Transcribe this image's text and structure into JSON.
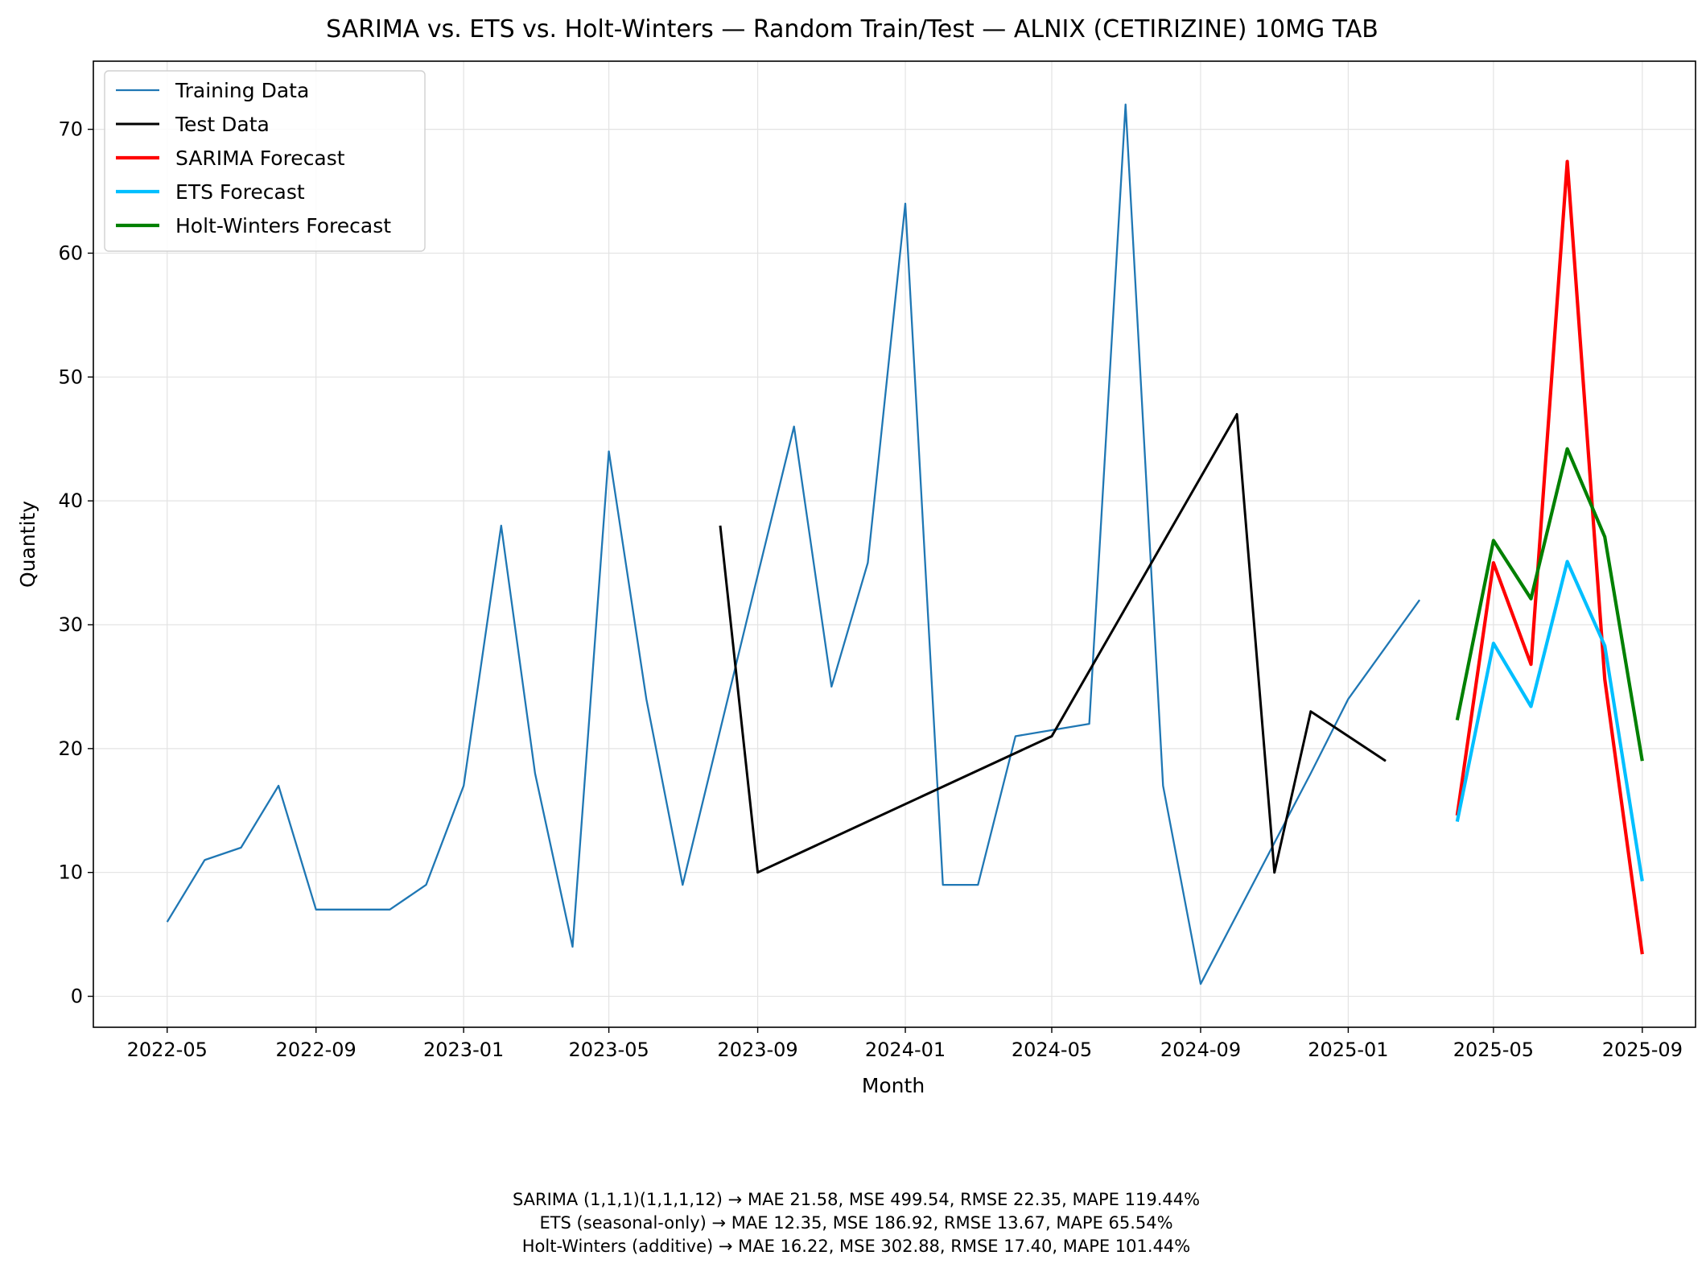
{
  "chart_data": {
    "type": "line",
    "title": "SARIMA vs. ETS vs. Holt-Winters — Random Train/Test — ALNIX (CETIRIZINE) 10MG TAB",
    "xlabel": "Month",
    "ylabel": "Quantity",
    "x_ticks": [
      "2022-05",
      "2022-09",
      "2023-01",
      "2023-05",
      "2023-09",
      "2024-01",
      "2024-05",
      "2024-09",
      "2025-01",
      "2025-05",
      "2025-09"
    ],
    "y_ticks": [
      0,
      10,
      20,
      30,
      40,
      50,
      60,
      70
    ],
    "xlim": [
      "2022-03-01",
      "2025-10-15"
    ],
    "ylim": [
      -2.5,
      75.5
    ],
    "grid": true,
    "legend_position": "top-left",
    "series": [
      {
        "name": "Training Data",
        "color": "#1f77b4",
        "points": [
          [
            "2022-05",
            6
          ],
          [
            "2022-06",
            11
          ],
          [
            "2022-07",
            12
          ],
          [
            "2022-08",
            17
          ],
          [
            "2022-09",
            7
          ],
          [
            "2022-10",
            7
          ],
          [
            "2022-11",
            7
          ],
          [
            "2022-12",
            9
          ],
          [
            "2023-01",
            17
          ],
          [
            "2023-02",
            38
          ],
          [
            "2023-03",
            18
          ],
          [
            "2023-04",
            4
          ],
          [
            "2023-05",
            44
          ],
          [
            "2023-06",
            24
          ],
          [
            "2023-07",
            9
          ],
          [
            "2023-09",
            34
          ],
          [
            "2023-10",
            46
          ],
          [
            "2023-11",
            25
          ],
          [
            "2023-12",
            35
          ],
          [
            "2024-01",
            64
          ],
          [
            "2024-02",
            9
          ],
          [
            "2024-03",
            9
          ],
          [
            "2024-04",
            21
          ],
          [
            "2024-06",
            22
          ],
          [
            "2024-07",
            72
          ],
          [
            "2024-08",
            17
          ],
          [
            "2024-09",
            1
          ],
          [
            "2024-12",
            18
          ],
          [
            "2025-01",
            24
          ],
          [
            "2025-03",
            32
          ]
        ]
      },
      {
        "name": "Test Data",
        "color": "#000000",
        "points": [
          [
            "2023-08",
            38
          ],
          [
            "2023-09",
            10
          ],
          [
            "2024-05",
            21
          ],
          [
            "2024-10",
            47
          ],
          [
            "2024-11",
            10
          ],
          [
            "2024-12",
            23
          ],
          [
            "2025-02",
            19
          ]
        ]
      },
      {
        "name": "SARIMA Forecast",
        "color": "#ff0000",
        "points": [
          [
            "2025-04",
            14.6
          ],
          [
            "2025-05",
            35
          ],
          [
            "2025-06",
            26.8
          ],
          [
            "2025-07",
            67.4
          ],
          [
            "2025-08",
            25.6
          ],
          [
            "2025-09",
            3.4
          ]
        ]
      },
      {
        "name": "ETS Forecast",
        "color": "#00bfff",
        "points": [
          [
            "2025-04",
            14.1
          ],
          [
            "2025-05",
            28.5
          ],
          [
            "2025-06",
            23.4
          ],
          [
            "2025-07",
            35.1
          ],
          [
            "2025-08",
            28.3
          ],
          [
            "2025-09",
            9.3
          ]
        ]
      },
      {
        "name": "Holt-Winters Forecast",
        "color": "#008000",
        "points": [
          [
            "2025-04",
            22.3
          ],
          [
            "2025-05",
            36.8
          ],
          [
            "2025-06",
            32.1
          ],
          [
            "2025-07",
            44.2
          ],
          [
            "2025-08",
            37.1
          ],
          [
            "2025-09",
            19
          ]
        ]
      }
    ],
    "annotations": [
      "SARIMA (1,1,1)(1,1,1,12) → MAE 21.58, MSE 499.54, RMSE 22.35, MAPE 119.44%",
      "ETS (seasonal-only) → MAE 12.35, MSE 186.92, RMSE 13.67, MAPE 65.54%",
      "Holt-Winters (additive) → MAE 16.22, MSE 302.88, RMSE 17.40, MAPE 101.44%"
    ]
  }
}
